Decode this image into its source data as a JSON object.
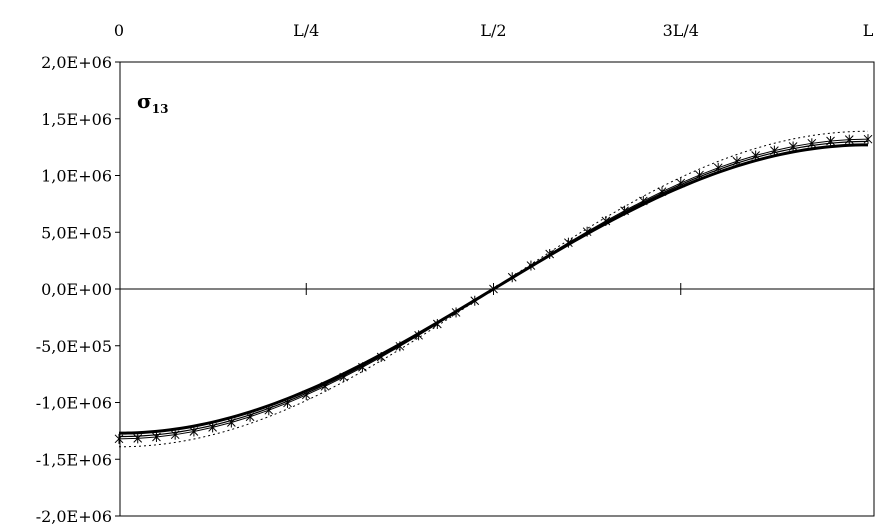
{
  "chart_data": {
    "type": "line",
    "label": "σ",
    "label_subscript": "13",
    "x_ticks": [
      "0",
      "L/4",
      "L/2",
      "3L/4",
      "L"
    ],
    "x_tick_values": [
      0,
      0.25,
      0.5,
      0.75,
      1.0
    ],
    "xlim": [
      0,
      1
    ],
    "y_ticks": [
      "2,0E+06",
      "1,5E+06",
      "1,0E+06",
      "5,0E+05",
      "0,0E+00",
      "-5,0E+05",
      "-1,0E+06",
      "-1,5E+06",
      "-2,0E+06"
    ],
    "y_tick_values": [
      2000000,
      1500000,
      1000000,
      500000,
      0,
      -500000,
      -1000000,
      -1500000,
      -2000000
    ],
    "ylim": [
      -2000000,
      2000000
    ],
    "grid": false,
    "x_axis_position": "top",
    "amplitudes": [
      1270000,
      1300000,
      1320000,
      1390000
    ],
    "series": [
      {
        "style": "thick-solid",
        "amplitude": 1270000,
        "color": "#000000"
      },
      {
        "style": "thin-solid",
        "amplitude": 1300000,
        "color": "#000000"
      },
      {
        "style": "star-markers",
        "amplitude": 1320000,
        "color": "#000000"
      },
      {
        "style": "dotted",
        "amplitude": 1390000,
        "color": "#000000"
      }
    ]
  }
}
